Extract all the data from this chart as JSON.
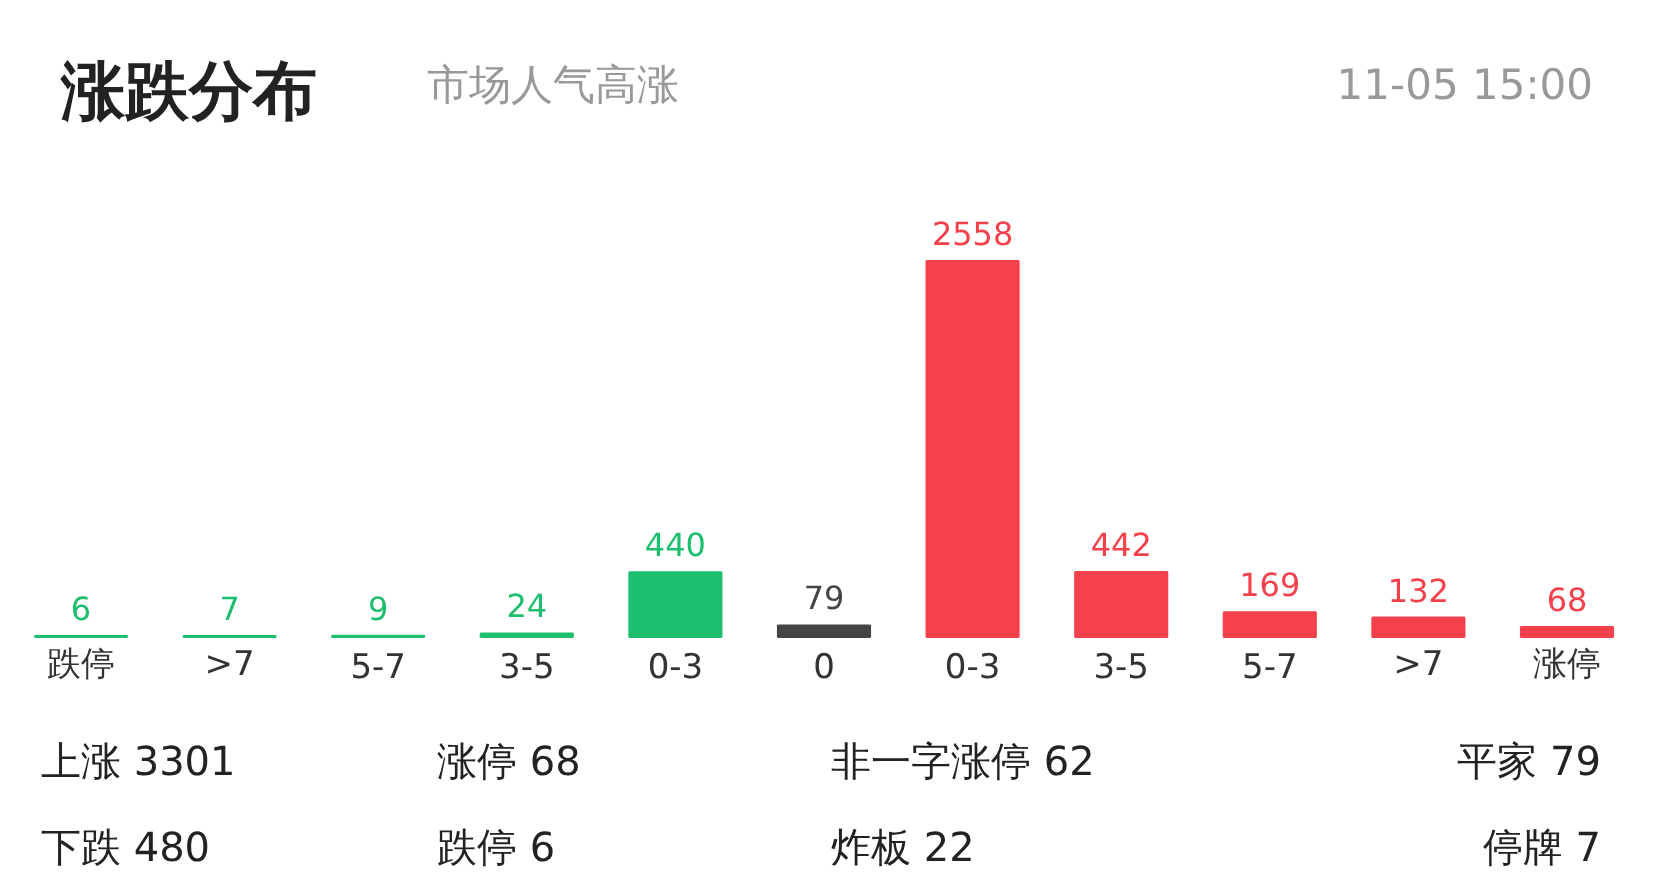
{
  "chart_data": {
    "type": "bar",
    "title": "涨跌分布",
    "subtitle": "市场人气高涨",
    "categories": [
      "跌停",
      ">7",
      "5-7",
      "3-5",
      "0-3",
      "0",
      "0-3",
      "3-5",
      "5-7",
      ">7",
      "涨停"
    ],
    "values": [
      6,
      7,
      9,
      24,
      440,
      79,
      2558,
      442,
      169,
      132,
      68
    ],
    "colors": [
      "#1dbf6e",
      "#1dbf6e",
      "#1dbf6e",
      "#1dbf6e",
      "#1dbf6e",
      "#444444",
      "#f5414b",
      "#f5414b",
      "#f5414b",
      "#f5414b",
      "#f5414b"
    ],
    "data_labels": true,
    "tick_labels": "x",
    "grid": false,
    "annotations": [
      "11-05 15:00",
      "上涨 3301",
      "涨停 68",
      "非一字涨停 62",
      "平家 79",
      "下跌 480",
      "跌停 6",
      "炸板 22",
      "停牌 7"
    ]
  }
}
